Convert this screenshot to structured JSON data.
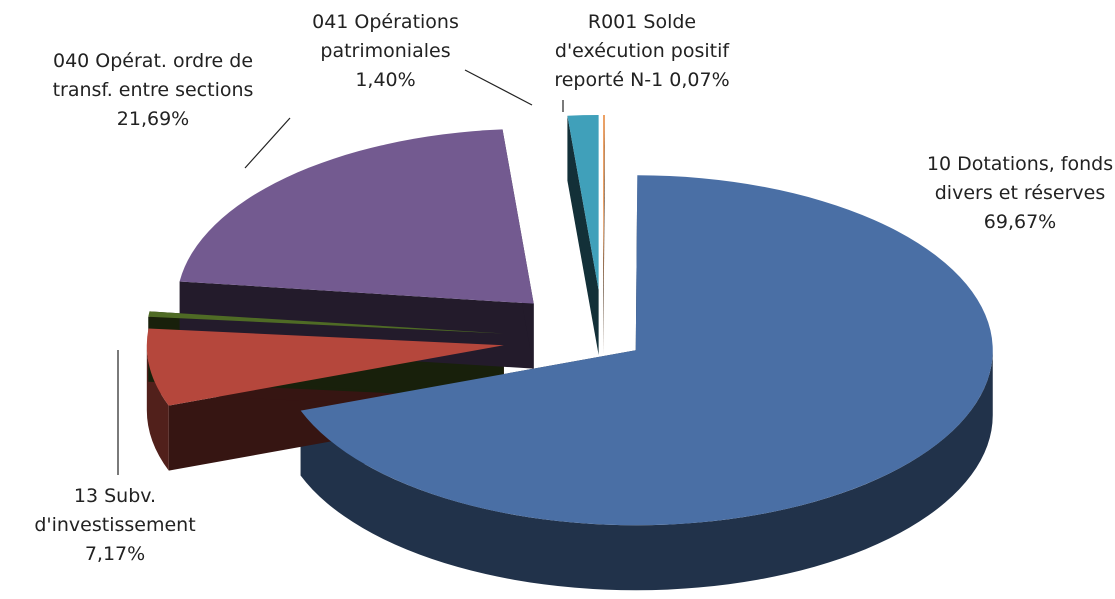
{
  "chart_data": {
    "type": "pie3d",
    "categories": [
      "R001 Solde d'exécution positif reporté N-1",
      "10 Dotations, fonds divers et réserves",
      "13 Subv. d'investissement",
      null,
      "040 Opérat. ordre de transf. entre sections",
      "041 Opérations patrimoniales"
    ],
    "values": [
      0.07,
      69.67,
      7.17,
      0.5,
      21.69,
      1.4
    ],
    "value_labels": [
      "0,07%",
      "69,67%",
      "7,17%",
      null,
      "21,69%",
      "1,40%"
    ],
    "colors": [
      "#e8873a",
      "#4a6fa5",
      "#b5473c",
      "#4f6b25",
      "#735a90",
      "#40a0ba"
    ]
  }
}
